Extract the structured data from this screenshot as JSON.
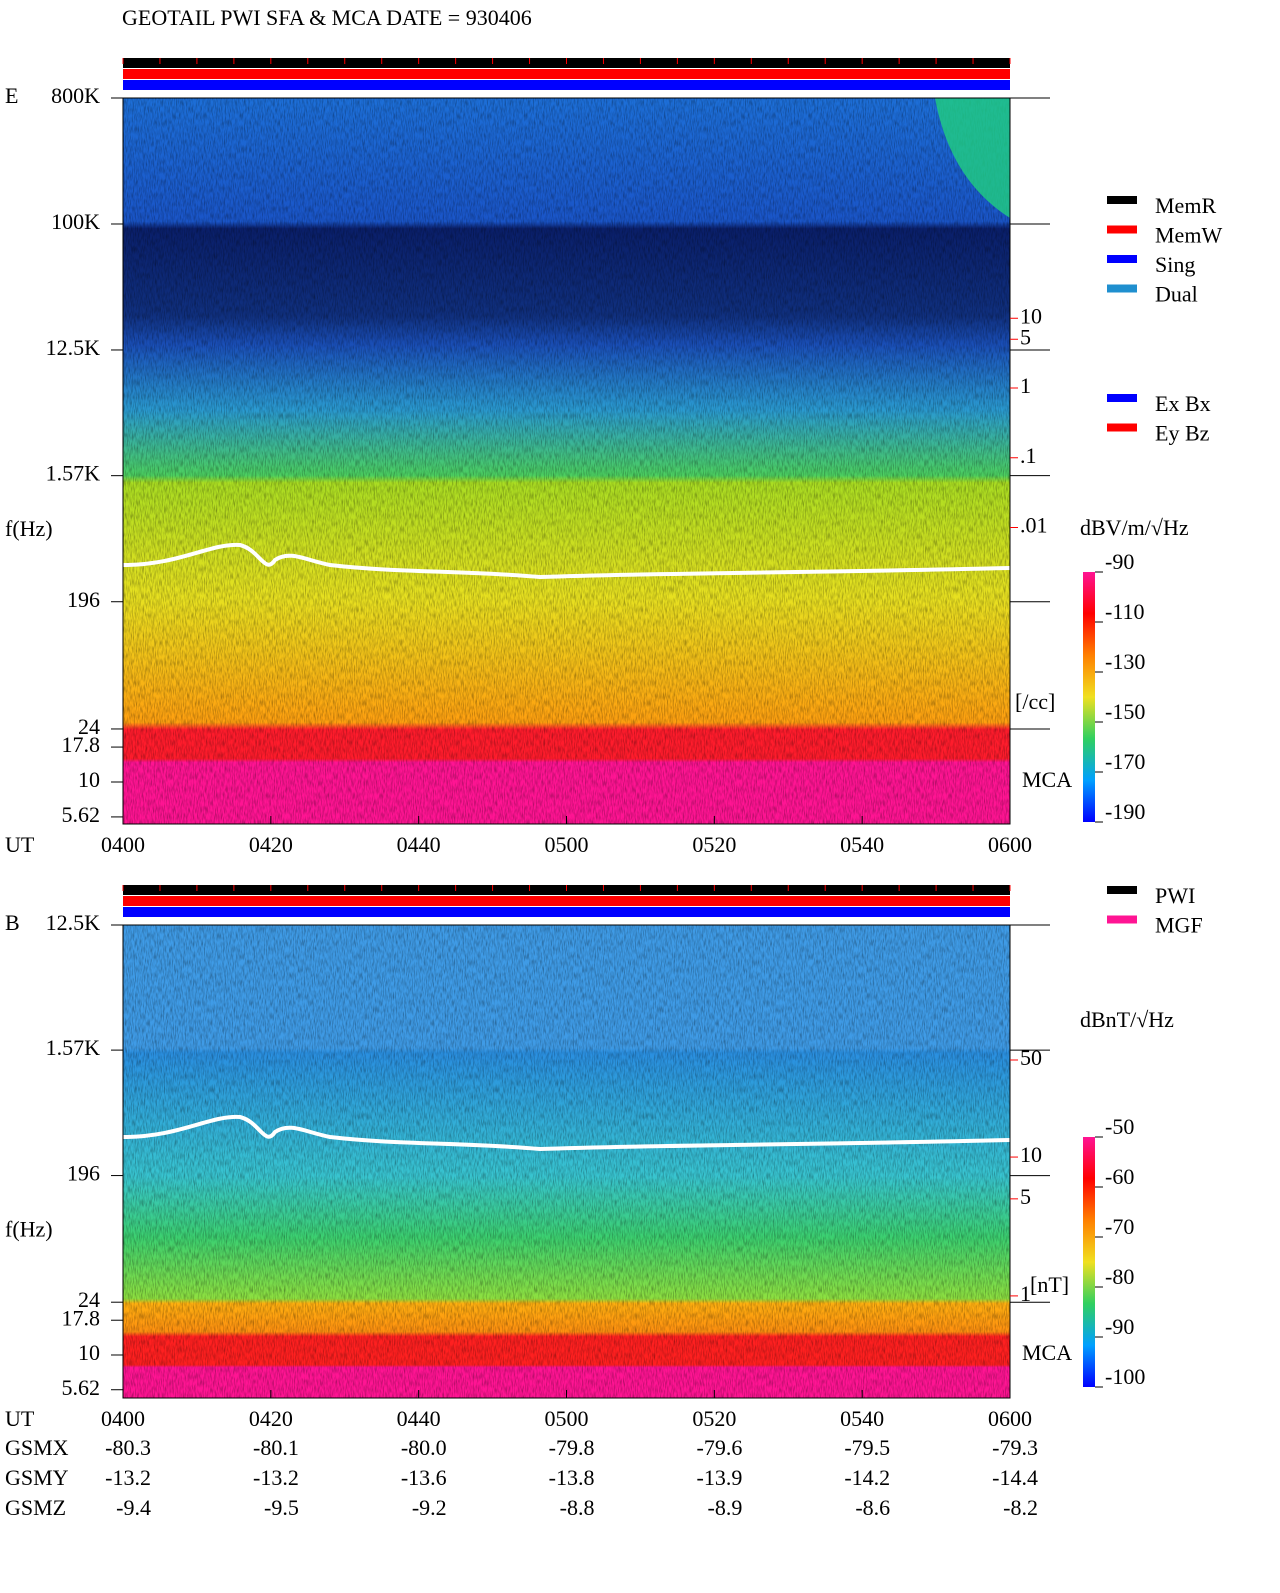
{
  "title": "GEOTAIL  PWI SFA & MCA   DATE = 930406",
  "chart_data": [
    {
      "type": "spectrogram",
      "panel": "E",
      "ylabel": "f(Hz)",
      "xlabel": "UT",
      "band_label": "MCA",
      "log_y": true,
      "ylim": [
        5,
        800000
      ],
      "yticks": [
        {
          "value": 800000,
          "label": "800K"
        },
        {
          "value": 100000,
          "label": "100K"
        },
        {
          "value": 12500,
          "label": "12.5K"
        },
        {
          "value": 1570,
          "label": "1.57K"
        },
        196,
        24,
        17.8,
        10,
        5.62
      ],
      "xticks": [
        "0400",
        "0420",
        "0440",
        "0500",
        "0520",
        "0540",
        "0600"
      ],
      "legend": [
        {
          "name": "MemR",
          "color": "#000000"
        },
        {
          "name": "MemW",
          "color": "#ff0000"
        },
        {
          "name": "Sing",
          "color": "#0000ff"
        },
        {
          "name": "Dual",
          "color": "#1f8fcf"
        }
      ],
      "legend2": [
        {
          "name": "Ex Bx",
          "color": "#0000ff"
        },
        {
          "name": "Ey Bz",
          "color": "#ff0000"
        }
      ],
      "colorbar": {
        "label": "dBV/m/√Hz",
        "lim": [
          -190,
          -90
        ],
        "ticks": [
          -90,
          -110,
          -130,
          -150,
          -170,
          -190
        ]
      },
      "secondary_scale": {
        "unit": "[/cc]",
        "color": "#ff0000",
        "ticks": [
          10,
          5,
          1,
          {
            "value": 0.1,
            "label": ".1"
          },
          {
            "value": 0.01,
            "label": ".01"
          }
        ]
      }
    },
    {
      "type": "spectrogram",
      "panel": "B",
      "ylabel": "f(Hz)",
      "xlabel": "UT",
      "band_label": "MCA",
      "log_y": true,
      "ylim": [
        4.9,
        12500
      ],
      "yticks": [
        {
          "value": 12500,
          "label": "12.5K"
        },
        {
          "value": 1570,
          "label": "1.57K"
        },
        196,
        24,
        17.8,
        10,
        5.62
      ],
      "xticks": [
        "0400",
        "0420",
        "0440",
        "0500",
        "0520",
        "0540",
        "0600"
      ],
      "legend": [
        {
          "name": "PWI",
          "color": "#000000"
        },
        {
          "name": "MGF",
          "color": "#ff1493"
        }
      ],
      "colorbar": {
        "label": "dBnT/√Hz",
        "lim": [
          -100,
          -50
        ],
        "ticks": [
          -50,
          -60,
          -70,
          -80,
          -90,
          -100
        ]
      },
      "secondary_scale": {
        "unit": "[nT]",
        "color": "#ff0000",
        "ticks": [
          50,
          10,
          5,
          1
        ]
      },
      "orbit": [
        {
          "name": "GSMX",
          "values": [
            "-80.3",
            "-80.1",
            "-80.0",
            "-79.8",
            "-79.6",
            "-79.5",
            "-79.3"
          ]
        },
        {
          "name": "GSMY",
          "values": [
            "-13.2",
            "-13.2",
            "-13.6",
            "-13.8",
            "-13.9",
            "-14.2",
            "-14.4"
          ]
        },
        {
          "name": "GSMZ",
          "values": [
            "-9.4",
            "-9.5",
            "-9.2",
            "-8.8",
            "-8.9",
            "-8.6",
            "-8.2"
          ]
        }
      ]
    }
  ]
}
